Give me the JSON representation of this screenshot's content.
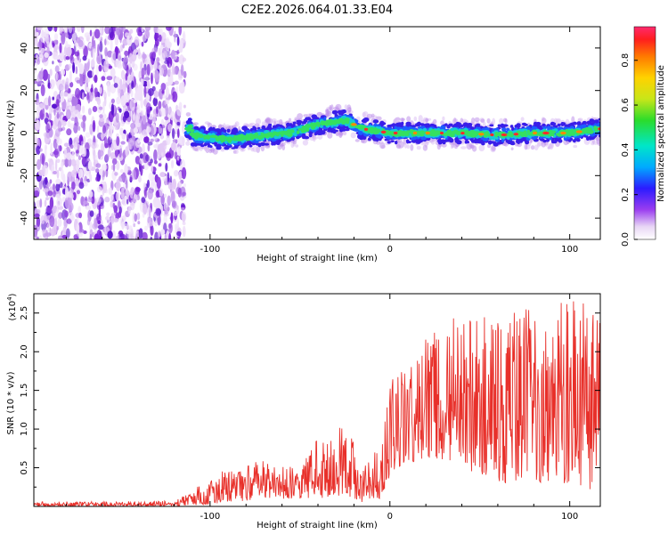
{
  "title": "C2E2.2026.064.01.33.E04",
  "colors": {
    "snr_line": "#e8302a",
    "axis": "#000000"
  },
  "chart_data": [
    {
      "type": "heatmap",
      "name": "spectrogram",
      "xlabel": "Height of straight line (km)",
      "ylabel": "Frequency (Hz)",
      "xlim": [
        -198,
        117
      ],
      "ylim": [
        -50,
        50
      ],
      "x_ticks": [
        -100,
        0,
        100
      ],
      "x_tick_labels": [
        "-100",
        "0",
        "100"
      ],
      "y_ticks": [
        -40,
        -20,
        0,
        20,
        40
      ],
      "y_tick_labels": [
        "-40",
        "-20",
        "0",
        "20",
        "40"
      ],
      "noise_region_x": [
        -198,
        -114
      ],
      "ridge_x": [
        -113,
        117
      ],
      "ridge": [
        {
          "x": -110,
          "y": -1
        },
        {
          "x": -90,
          "y": -3
        },
        {
          "x": -70,
          "y": -1
        },
        {
          "x": -55,
          "y": 0
        },
        {
          "x": -40,
          "y": 4
        },
        {
          "x": -25,
          "y": 6
        },
        {
          "x": -15,
          "y": 2
        },
        {
          "x": 0,
          "y": 0
        },
        {
          "x": 20,
          "y": 0
        },
        {
          "x": 40,
          "y": 0
        },
        {
          "x": 60,
          "y": -1
        },
        {
          "x": 80,
          "y": 0
        },
        {
          "x": 100,
          "y": 0
        },
        {
          "x": 117,
          "y": 2
        }
      ],
      "colorbar": {
        "label": "Normalized spectral amplitude",
        "range": [
          0,
          0.95
        ],
        "ticks": [
          0.0,
          0.2,
          0.4,
          0.6,
          0.8
        ],
        "tick_labels": [
          "0.0",
          "0.2",
          "0.4",
          "0.6",
          "0.8"
        ]
      }
    },
    {
      "type": "line",
      "name": "snr",
      "xlabel": "Height of straight line (km)",
      "ylabel": "SNR (10 * v/v)",
      "y_scale_label": "(x10",
      "y_scale_exponent": "4",
      "xlim": [
        -198,
        117
      ],
      "ylim": [
        0,
        2.75
      ],
      "x_ticks": [
        -100,
        0,
        100
      ],
      "x_tick_labels": [
        "-100",
        "0",
        "100"
      ],
      "y_ticks": [
        0.5,
        1.0,
        1.5,
        2.0,
        2.5
      ],
      "y_tick_labels": [
        "0.5",
        "1.0",
        "1.5",
        "2.0",
        "2.5"
      ],
      "envelope": [
        {
          "x": -198,
          "lo": 0.0,
          "hi": 0.06
        },
        {
          "x": -120,
          "lo": 0.0,
          "hi": 0.07
        },
        {
          "x": -105,
          "lo": 0.02,
          "hi": 0.3
        },
        {
          "x": -90,
          "lo": 0.05,
          "hi": 0.5
        },
        {
          "x": -70,
          "lo": 0.1,
          "hi": 0.6
        },
        {
          "x": -50,
          "lo": 0.1,
          "hi": 0.5
        },
        {
          "x": -40,
          "lo": 0.1,
          "hi": 0.9
        },
        {
          "x": -25,
          "lo": 0.15,
          "hi": 1.05
        },
        {
          "x": -15,
          "lo": 0.05,
          "hi": 0.6
        },
        {
          "x": -5,
          "lo": 0.1,
          "hi": 0.8
        },
        {
          "x": 0,
          "lo": 0.4,
          "hi": 1.65
        },
        {
          "x": 10,
          "lo": 0.5,
          "hi": 1.9
        },
        {
          "x": 30,
          "lo": 0.6,
          "hi": 2.5
        },
        {
          "x": 60,
          "lo": 0.3,
          "hi": 2.45
        },
        {
          "x": 90,
          "lo": 0.3,
          "hi": 2.65
        },
        {
          "x": 110,
          "lo": 0.2,
          "hi": 2.75
        },
        {
          "x": 117,
          "lo": 0.3,
          "hi": 2.5
        }
      ]
    }
  ]
}
